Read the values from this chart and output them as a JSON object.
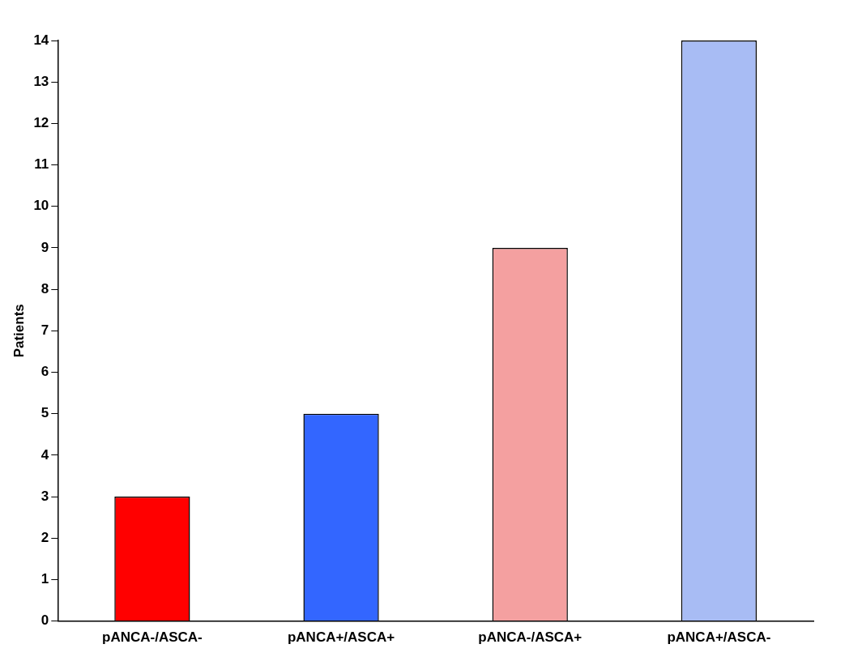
{
  "chart_data": {
    "type": "bar",
    "ylabel": "Patients",
    "categories": [
      "pANCA-/ASCA-",
      "pANCA+/ASCA+",
      "pANCA-/ASCA+",
      "pANCA+/ASCA-"
    ],
    "values": [
      3,
      5,
      9,
      14
    ],
    "colors": [
      "#ff0000",
      "#3366ff",
      "#f4a0a0",
      "#a8bcf4"
    ],
    "ylim": [
      0,
      14
    ],
    "yticks": [
      0,
      1,
      2,
      3,
      4,
      5,
      6,
      7,
      8,
      9,
      10,
      11,
      12,
      13,
      14
    ],
    "grid": false,
    "legend": false
  }
}
